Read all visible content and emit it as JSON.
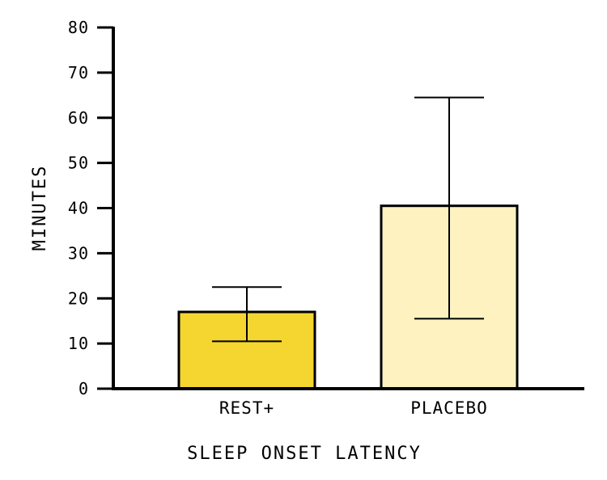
{
  "chart_data": {
    "type": "bar",
    "categories": [
      "REST+",
      "PLACEBO"
    ],
    "values": [
      17,
      40.5
    ],
    "error_low": [
      10.5,
      15.5
    ],
    "error_high": [
      22.5,
      64.5
    ],
    "colors": [
      "#f5d631",
      "#fdf2c0"
    ],
    "xlabel": "SLEEP ONSET LATENCY",
    "ylabel": "MINUTES",
    "ylim": [
      0,
      80
    ],
    "yticks": [
      "0",
      "10",
      "20",
      "30",
      "40",
      "50",
      "60",
      "70",
      "80"
    ],
    "grid": false
  }
}
